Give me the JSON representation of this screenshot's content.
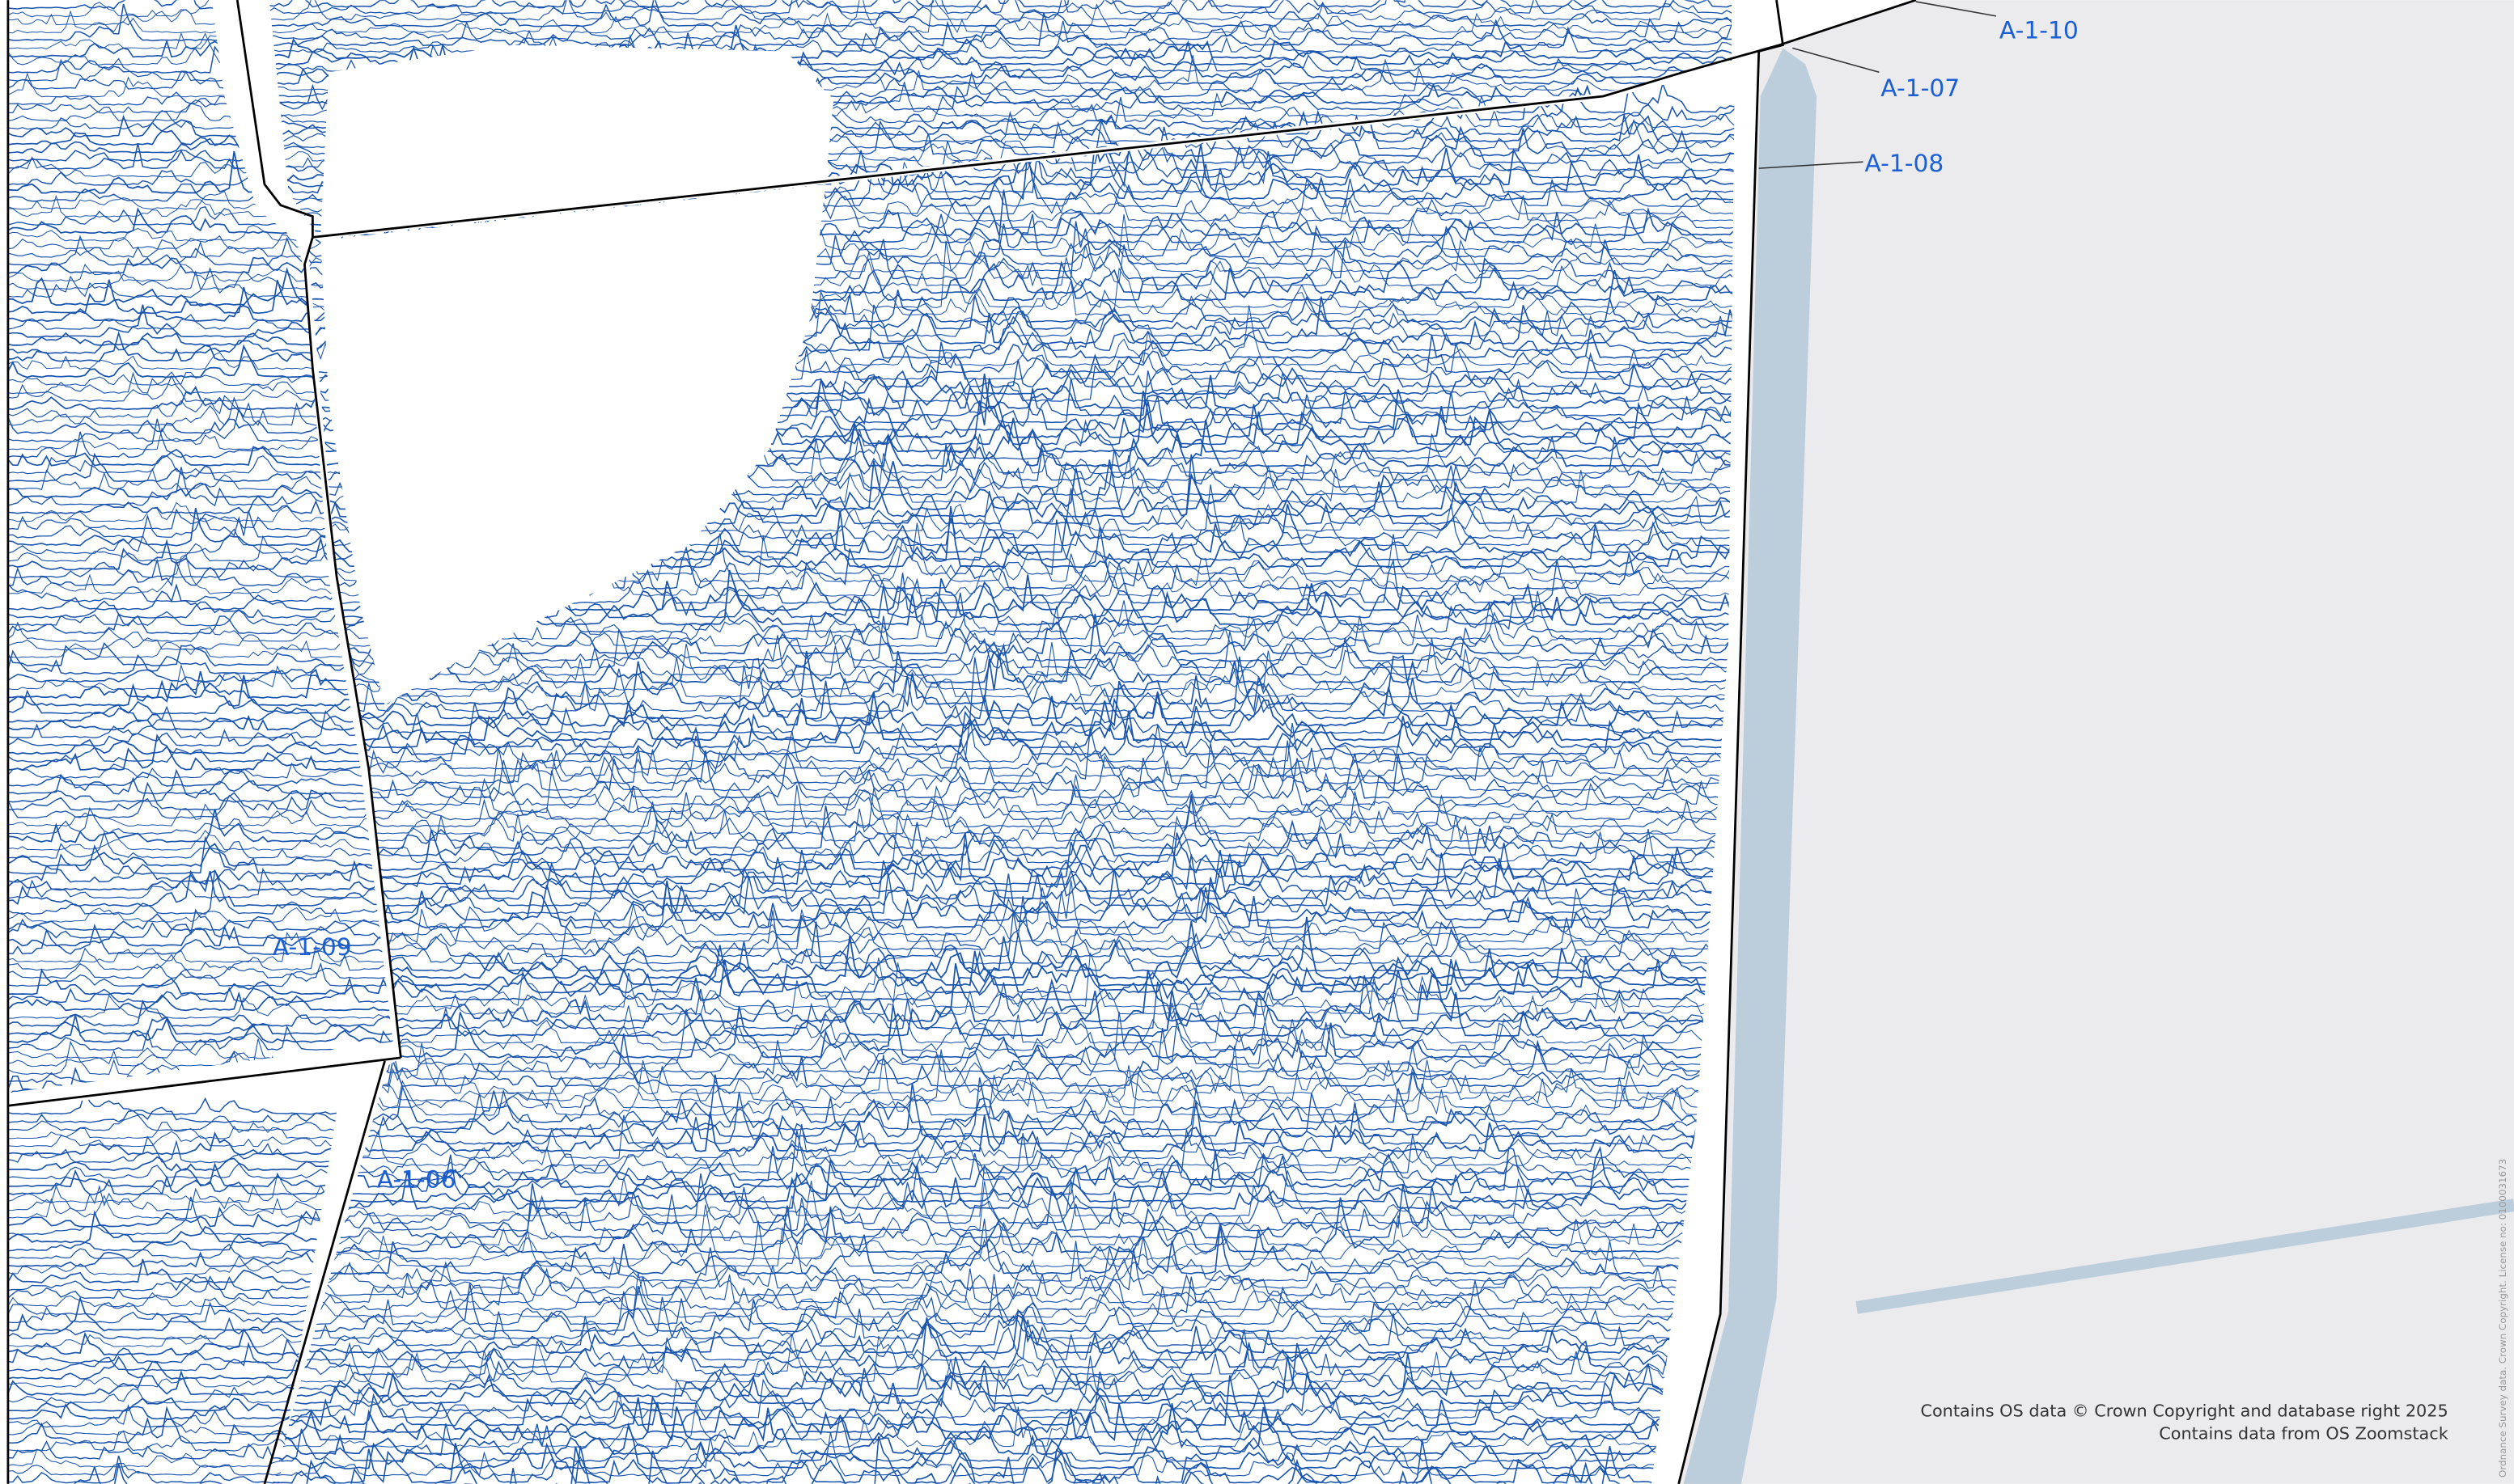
{
  "labels": [
    "A-1-10",
    "A-1-07",
    "A-1-08",
    "A-1-09",
    "A-1-06"
  ],
  "attribution": {
    "lines": [
      "Contains OS data © Crown Copyright and database right 2025",
      "Contains data from OS Zoomstack"
    ],
    "vertical": "Ordnance Survey data. Crown Copyright. License no: 0100031673"
  }
}
